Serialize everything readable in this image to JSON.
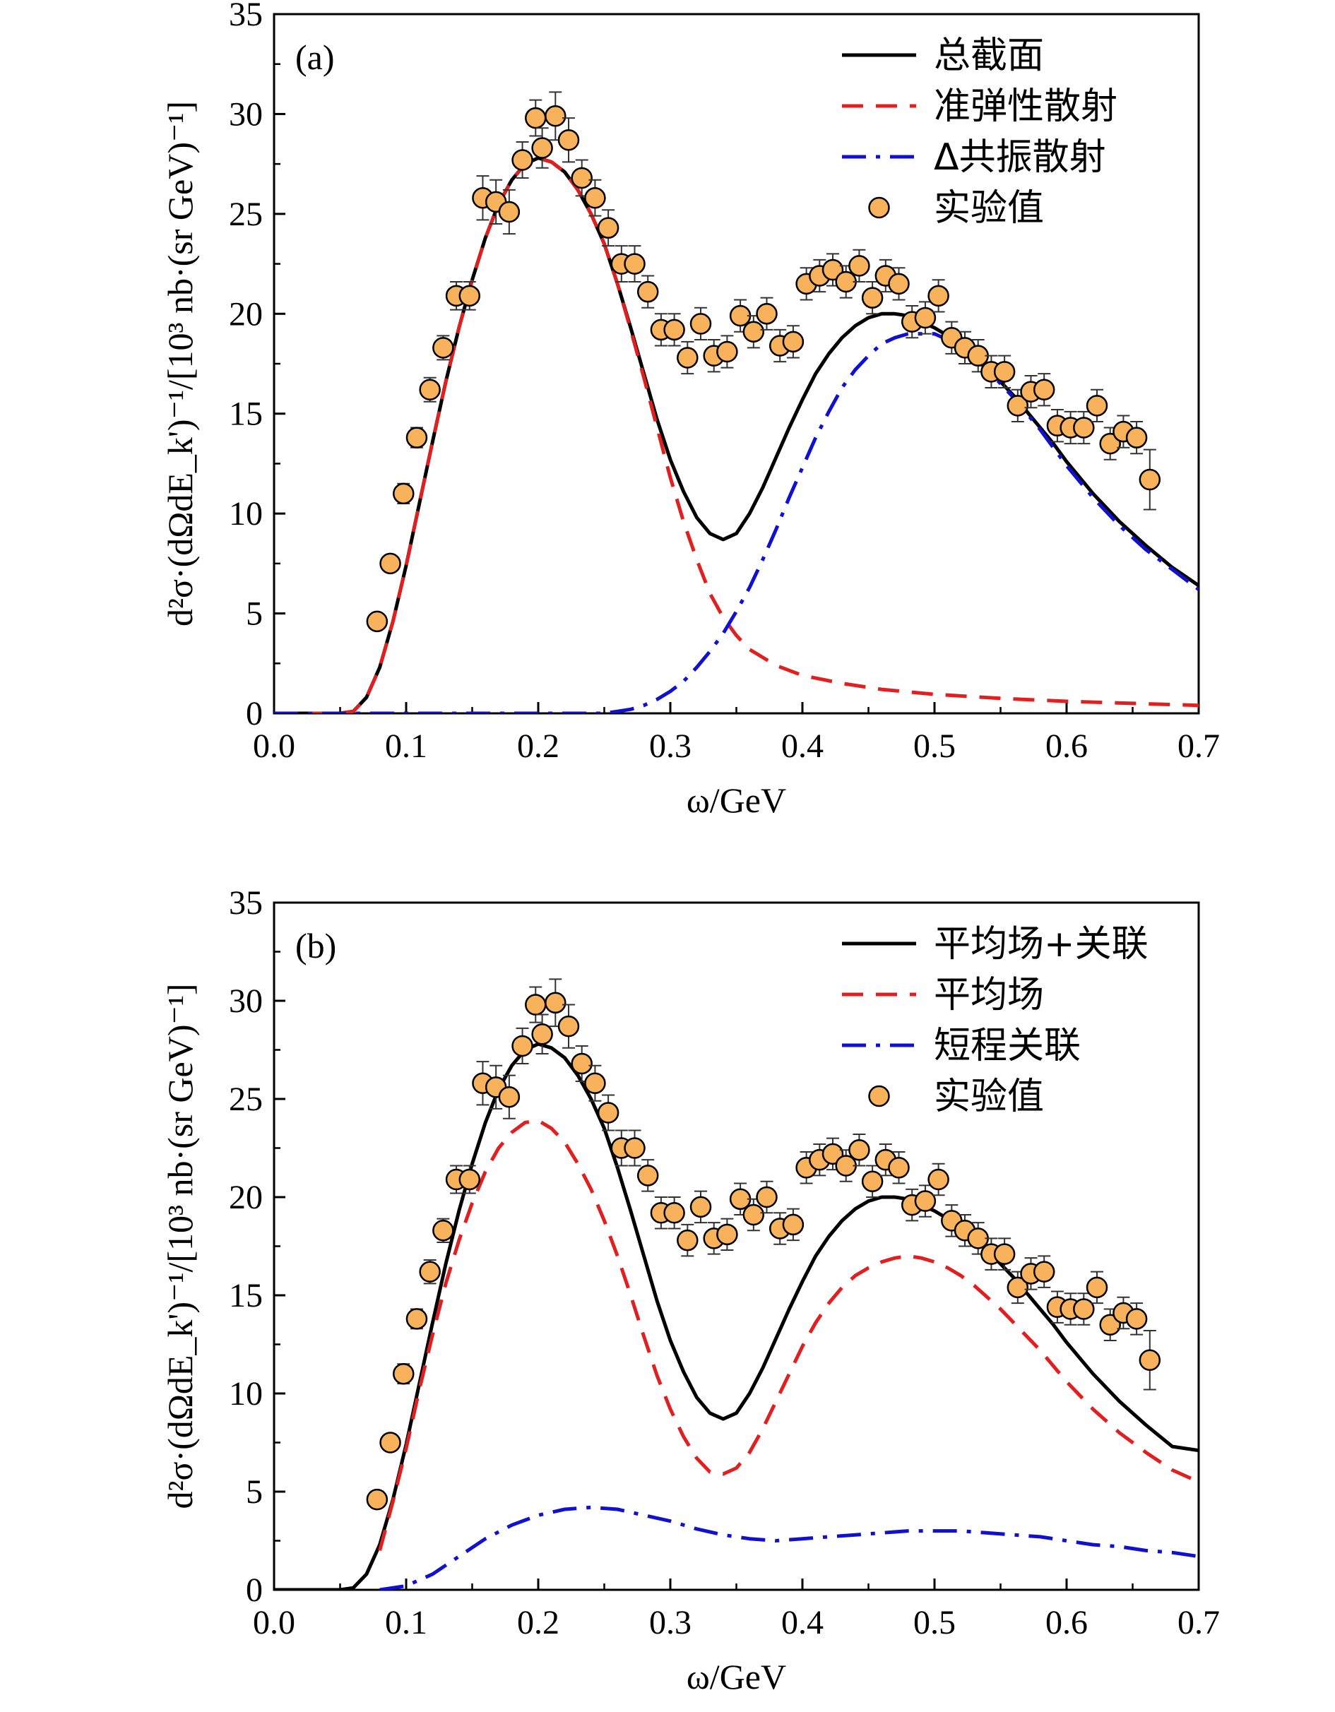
{
  "chart_data": [
    {
      "type": "line",
      "panel_label": "(a)",
      "xlabel": "ω/GeV",
      "ylabel": "d²σ·(dΩdE_k')⁻¹/[10³ nb·(sr GeV)⁻¹]",
      "xlim": [
        0.0,
        0.7
      ],
      "ylim": [
        0,
        35
      ],
      "x_ticks": [
        0.0,
        0.1,
        0.2,
        0.3,
        0.4,
        0.5,
        0.6,
        0.7
      ],
      "y_ticks": [
        0,
        5,
        10,
        15,
        20,
        25,
        30,
        35
      ],
      "grid": false,
      "legend_position": "top-right",
      "series": [
        {
          "name": "总截面",
          "style": "solid",
          "color": "#000000",
          "x": [
            0.0,
            0.05,
            0.06,
            0.07,
            0.08,
            0.09,
            0.1,
            0.11,
            0.12,
            0.13,
            0.14,
            0.15,
            0.16,
            0.17,
            0.18,
            0.19,
            0.2,
            0.21,
            0.22,
            0.23,
            0.24,
            0.25,
            0.26,
            0.27,
            0.28,
            0.29,
            0.3,
            0.31,
            0.32,
            0.33,
            0.34,
            0.35,
            0.36,
            0.37,
            0.38,
            0.39,
            0.4,
            0.41,
            0.42,
            0.43,
            0.44,
            0.45,
            0.46,
            0.47,
            0.48,
            0.49,
            0.5,
            0.51,
            0.52,
            0.53,
            0.54,
            0.55,
            0.56,
            0.57,
            0.58,
            0.59,
            0.6,
            0.62,
            0.64,
            0.66,
            0.68,
            0.7
          ],
          "values": [
            0,
            0,
            0.1,
            0.8,
            2.3,
            4.6,
            7.4,
            10.5,
            13.6,
            16.6,
            19.3,
            21.7,
            23.8,
            25.5,
            26.7,
            27.5,
            27.8,
            27.6,
            27.1,
            26.2,
            25.0,
            23.5,
            21.5,
            19.3,
            17.0,
            14.7,
            12.7,
            11.1,
            9.8,
            9.0,
            8.7,
            9.0,
            10.0,
            11.3,
            12.8,
            14.3,
            15.7,
            17.0,
            18.0,
            18.8,
            19.4,
            19.8,
            20.0,
            20.0,
            19.9,
            19.6,
            19.3,
            18.9,
            18.4,
            17.9,
            17.3,
            16.6,
            15.9,
            15.1,
            14.3,
            13.5,
            12.6,
            11.0,
            9.6,
            8.4,
            7.3,
            6.4
          ]
        },
        {
          "name": "准弹性散射",
          "style": "dashed",
          "color": "#e02020",
          "x": [
            0.0,
            0.05,
            0.06,
            0.07,
            0.08,
            0.09,
            0.1,
            0.11,
            0.12,
            0.13,
            0.14,
            0.15,
            0.16,
            0.17,
            0.18,
            0.19,
            0.2,
            0.21,
            0.22,
            0.23,
            0.24,
            0.25,
            0.26,
            0.27,
            0.28,
            0.29,
            0.3,
            0.31,
            0.32,
            0.33,
            0.34,
            0.35,
            0.36,
            0.38,
            0.4,
            0.43,
            0.46,
            0.5,
            0.55,
            0.6,
            0.65,
            0.7
          ],
          "values": [
            0,
            0,
            0.1,
            0.8,
            2.3,
            4.6,
            7.4,
            10.5,
            13.6,
            16.6,
            19.3,
            21.7,
            23.8,
            25.5,
            26.7,
            27.5,
            27.8,
            27.6,
            27.1,
            26.2,
            25.0,
            23.5,
            21.5,
            19.2,
            16.8,
            14.3,
            11.8,
            9.6,
            7.7,
            6.0,
            4.8,
            3.9,
            3.2,
            2.4,
            1.9,
            1.5,
            1.2,
            0.95,
            0.75,
            0.6,
            0.5,
            0.4
          ]
        },
        {
          "name": "Δ共振散射",
          "style": "dashdot",
          "color": "#1010d0",
          "x": [
            0.0,
            0.25,
            0.26,
            0.27,
            0.28,
            0.29,
            0.3,
            0.31,
            0.32,
            0.33,
            0.34,
            0.35,
            0.36,
            0.37,
            0.38,
            0.39,
            0.4,
            0.41,
            0.42,
            0.43,
            0.44,
            0.45,
            0.46,
            0.47,
            0.48,
            0.49,
            0.5,
            0.51,
            0.52,
            0.53,
            0.54,
            0.55,
            0.56,
            0.57,
            0.58,
            0.59,
            0.6,
            0.62,
            0.64,
            0.66,
            0.68,
            0.7
          ],
          "values": [
            0,
            0,
            0.1,
            0.2,
            0.4,
            0.7,
            1.1,
            1.6,
            2.3,
            3.1,
            4.0,
            5.1,
            6.3,
            7.7,
            9.2,
            10.8,
            12.3,
            13.8,
            15.1,
            16.3,
            17.2,
            17.9,
            18.5,
            18.8,
            19.0,
            19.0,
            19.0,
            18.7,
            18.3,
            17.8,
            17.2,
            16.5,
            15.8,
            15.0,
            14.2,
            13.3,
            12.4,
            10.8,
            9.4,
            8.2,
            7.2,
            6.2
          ]
        }
      ],
      "scatter": {
        "name": "实验值",
        "color": "#f9b25c",
        "x": [
          0.078,
          0.088,
          0.098,
          0.108,
          0.118,
          0.128,
          0.138,
          0.148,
          0.158,
          0.168,
          0.178,
          0.188,
          0.198,
          0.203,
          0.213,
          0.223,
          0.233,
          0.243,
          0.253,
          0.263,
          0.273,
          0.283,
          0.293,
          0.303,
          0.313,
          0.323,
          0.333,
          0.343,
          0.353,
          0.363,
          0.373,
          0.383,
          0.393,
          0.403,
          0.413,
          0.423,
          0.433,
          0.443,
          0.453,
          0.463,
          0.473,
          0.483,
          0.493,
          0.503,
          0.513,
          0.523,
          0.533,
          0.543,
          0.553,
          0.563,
          0.573,
          0.583,
          0.593,
          0.603,
          0.613,
          0.623,
          0.633,
          0.643,
          0.653,
          0.663
        ],
        "y": [
          4.6,
          7.5,
          11.0,
          13.8,
          16.2,
          18.3,
          20.9,
          20.9,
          25.8,
          25.6,
          25.1,
          27.7,
          29.8,
          28.3,
          29.9,
          28.7,
          26.8,
          25.8,
          24.3,
          22.5,
          22.5,
          21.1,
          19.2,
          19.2,
          17.8,
          19.5,
          17.9,
          18.1,
          19.9,
          19.1,
          20.0,
          18.4,
          18.6,
          21.5,
          21.9,
          22.2,
          21.6,
          22.4,
          20.8,
          21.9,
          21.5,
          19.6,
          19.8,
          20.9,
          18.8,
          18.3,
          17.9,
          17.1,
          17.1,
          15.4,
          16.1,
          16.2,
          14.4,
          14.3,
          14.3,
          15.4,
          13.5,
          14.1,
          13.8,
          11.7
        ],
        "error": [
          0.4,
          0.4,
          0.5,
          0.5,
          0.6,
          0.6,
          0.7,
          0.7,
          1.1,
          1.1,
          1.1,
          0.9,
          0.9,
          1.0,
          1.2,
          1.1,
          0.9,
          0.9,
          0.9,
          0.9,
          0.9,
          0.8,
          0.8,
          0.8,
          0.8,
          0.8,
          0.8,
          0.8,
          0.8,
          0.8,
          0.8,
          0.8,
          0.8,
          0.8,
          0.8,
          0.8,
          0.8,
          0.8,
          0.8,
          0.8,
          0.8,
          0.8,
          0.8,
          0.8,
          0.8,
          0.8,
          0.8,
          0.8,
          0.8,
          0.8,
          0.8,
          0.8,
          0.8,
          0.8,
          0.8,
          0.8,
          0.8,
          0.8,
          0.8,
          1.5
        ]
      }
    },
    {
      "type": "line",
      "panel_label": "(b)",
      "xlabel": "ω/GeV",
      "ylabel": "d²σ·(dΩdE_k')⁻¹/[10³ nb·(sr GeV)⁻¹]",
      "xlim": [
        0.0,
        0.7
      ],
      "ylim": [
        0,
        35
      ],
      "x_ticks": [
        0.0,
        0.1,
        0.2,
        0.3,
        0.4,
        0.5,
        0.6,
        0.7
      ],
      "y_ticks": [
        0,
        5,
        10,
        15,
        20,
        25,
        30,
        35
      ],
      "grid": false,
      "legend_position": "top-right",
      "series": [
        {
          "name": "平均场+关联",
          "style": "solid",
          "color": "#000000",
          "x": [
            0.0,
            0.05,
            0.06,
            0.07,
            0.08,
            0.09,
            0.1,
            0.11,
            0.12,
            0.13,
            0.14,
            0.15,
            0.16,
            0.17,
            0.18,
            0.19,
            0.2,
            0.21,
            0.22,
            0.23,
            0.24,
            0.25,
            0.26,
            0.27,
            0.28,
            0.29,
            0.3,
            0.31,
            0.32,
            0.33,
            0.34,
            0.35,
            0.36,
            0.37,
            0.38,
            0.39,
            0.4,
            0.41,
            0.42,
            0.43,
            0.44,
            0.45,
            0.46,
            0.47,
            0.48,
            0.49,
            0.5,
            0.51,
            0.52,
            0.53,
            0.54,
            0.55,
            0.56,
            0.57,
            0.58,
            0.59,
            0.6,
            0.62,
            0.64,
            0.66,
            0.68,
            0.7
          ],
          "values": [
            0,
            0,
            0.1,
            0.8,
            2.3,
            4.6,
            7.4,
            10.5,
            13.6,
            16.6,
            19.3,
            21.7,
            23.8,
            25.5,
            26.7,
            27.5,
            27.8,
            27.6,
            27.1,
            26.2,
            25.0,
            23.5,
            21.5,
            19.3,
            17.0,
            14.7,
            12.7,
            11.1,
            9.8,
            9.0,
            8.7,
            9.0,
            10.0,
            11.3,
            12.8,
            14.3,
            15.7,
            17.0,
            18.0,
            18.8,
            19.4,
            19.8,
            20.0,
            20.0,
            19.9,
            19.6,
            19.3,
            18.9,
            18.4,
            17.9,
            17.3,
            16.6,
            15.9,
            15.1,
            14.3,
            13.5,
            12.6,
            11.0,
            9.6,
            8.4,
            7.3,
            7.1
          ]
        },
        {
          "name": "平均场",
          "style": "dashed",
          "color": "#e02020",
          "x": [
            0.08,
            0.09,
            0.1,
            0.11,
            0.12,
            0.13,
            0.14,
            0.15,
            0.16,
            0.17,
            0.18,
            0.19,
            0.2,
            0.21,
            0.22,
            0.23,
            0.24,
            0.25,
            0.26,
            0.27,
            0.28,
            0.29,
            0.3,
            0.31,
            0.32,
            0.33,
            0.34,
            0.35,
            0.36,
            0.37,
            0.38,
            0.39,
            0.4,
            0.41,
            0.42,
            0.43,
            0.44,
            0.45,
            0.46,
            0.47,
            0.48,
            0.49,
            0.5,
            0.51,
            0.52,
            0.53,
            0.54,
            0.55,
            0.56,
            0.57,
            0.58,
            0.59,
            0.6,
            0.62,
            0.64,
            0.66,
            0.68,
            0.7
          ],
          "values": [
            2.0,
            4.5,
            7.2,
            10.2,
            13.0,
            15.6,
            17.8,
            19.7,
            21.3,
            22.5,
            23.3,
            23.8,
            23.9,
            23.5,
            22.8,
            21.7,
            20.4,
            18.8,
            17.0,
            15.0,
            12.9,
            10.9,
            9.2,
            7.8,
            6.7,
            6.0,
            5.9,
            6.2,
            7.0,
            8.2,
            9.6,
            11.0,
            12.4,
            13.6,
            14.6,
            15.4,
            16.0,
            16.4,
            16.7,
            16.9,
            17.0,
            16.9,
            16.7,
            16.4,
            16.0,
            15.5,
            14.9,
            14.3,
            13.6,
            12.9,
            12.2,
            11.4,
            10.6,
            9.2,
            8.0,
            7.0,
            6.1,
            5.5
          ]
        },
        {
          "name": "短程关联",
          "style": "dashdot",
          "color": "#1010d0",
          "x": [
            0.08,
            0.1,
            0.12,
            0.14,
            0.16,
            0.18,
            0.2,
            0.22,
            0.24,
            0.26,
            0.28,
            0.3,
            0.32,
            0.34,
            0.36,
            0.38,
            0.4,
            0.42,
            0.44,
            0.46,
            0.48,
            0.5,
            0.52,
            0.54,
            0.56,
            0.58,
            0.6,
            0.62,
            0.64,
            0.66,
            0.68,
            0.7
          ],
          "values": [
            0.0,
            0.2,
            0.8,
            1.7,
            2.6,
            3.3,
            3.8,
            4.1,
            4.2,
            4.1,
            3.8,
            3.5,
            3.1,
            2.8,
            2.6,
            2.5,
            2.6,
            2.7,
            2.8,
            2.9,
            3.0,
            3.0,
            3.0,
            2.9,
            2.8,
            2.7,
            2.5,
            2.3,
            2.2,
            2.0,
            1.9,
            1.7
          ]
        }
      ],
      "scatter": {
        "name": "实验值",
        "color": "#f9b25c",
        "x": [
          0.078,
          0.088,
          0.098,
          0.108,
          0.118,
          0.128,
          0.138,
          0.148,
          0.158,
          0.168,
          0.178,
          0.188,
          0.198,
          0.203,
          0.213,
          0.223,
          0.233,
          0.243,
          0.253,
          0.263,
          0.273,
          0.283,
          0.293,
          0.303,
          0.313,
          0.323,
          0.333,
          0.343,
          0.353,
          0.363,
          0.373,
          0.383,
          0.393,
          0.403,
          0.413,
          0.423,
          0.433,
          0.443,
          0.453,
          0.463,
          0.473,
          0.483,
          0.493,
          0.503,
          0.513,
          0.523,
          0.533,
          0.543,
          0.553,
          0.563,
          0.573,
          0.583,
          0.593,
          0.603,
          0.613,
          0.623,
          0.633,
          0.643,
          0.653,
          0.663
        ],
        "y": [
          4.6,
          7.5,
          11.0,
          13.8,
          16.2,
          18.3,
          20.9,
          20.9,
          25.8,
          25.6,
          25.1,
          27.7,
          29.8,
          28.3,
          29.9,
          28.7,
          26.8,
          25.8,
          24.3,
          22.5,
          22.5,
          21.1,
          19.2,
          19.2,
          17.8,
          19.5,
          17.9,
          18.1,
          19.9,
          19.1,
          20.0,
          18.4,
          18.6,
          21.5,
          21.9,
          22.2,
          21.6,
          22.4,
          20.8,
          21.9,
          21.5,
          19.6,
          19.8,
          20.9,
          18.8,
          18.3,
          17.9,
          17.1,
          17.1,
          15.4,
          16.1,
          16.2,
          14.4,
          14.3,
          14.3,
          15.4,
          13.5,
          14.1,
          13.8,
          11.7
        ],
        "error": [
          0.4,
          0.4,
          0.5,
          0.5,
          0.6,
          0.6,
          0.7,
          0.7,
          1.1,
          1.1,
          1.1,
          0.9,
          0.9,
          1.0,
          1.2,
          1.1,
          0.9,
          0.9,
          0.9,
          0.9,
          0.9,
          0.8,
          0.8,
          0.8,
          0.8,
          0.8,
          0.8,
          0.8,
          0.8,
          0.8,
          0.8,
          0.8,
          0.8,
          0.8,
          0.8,
          0.8,
          0.8,
          0.8,
          0.8,
          0.8,
          0.8,
          0.8,
          0.8,
          0.8,
          0.8,
          0.8,
          0.8,
          0.8,
          0.8,
          0.8,
          0.8,
          0.8,
          0.8,
          0.8,
          0.8,
          0.8,
          0.8,
          0.8,
          0.8,
          1.5
        ]
      }
    }
  ]
}
